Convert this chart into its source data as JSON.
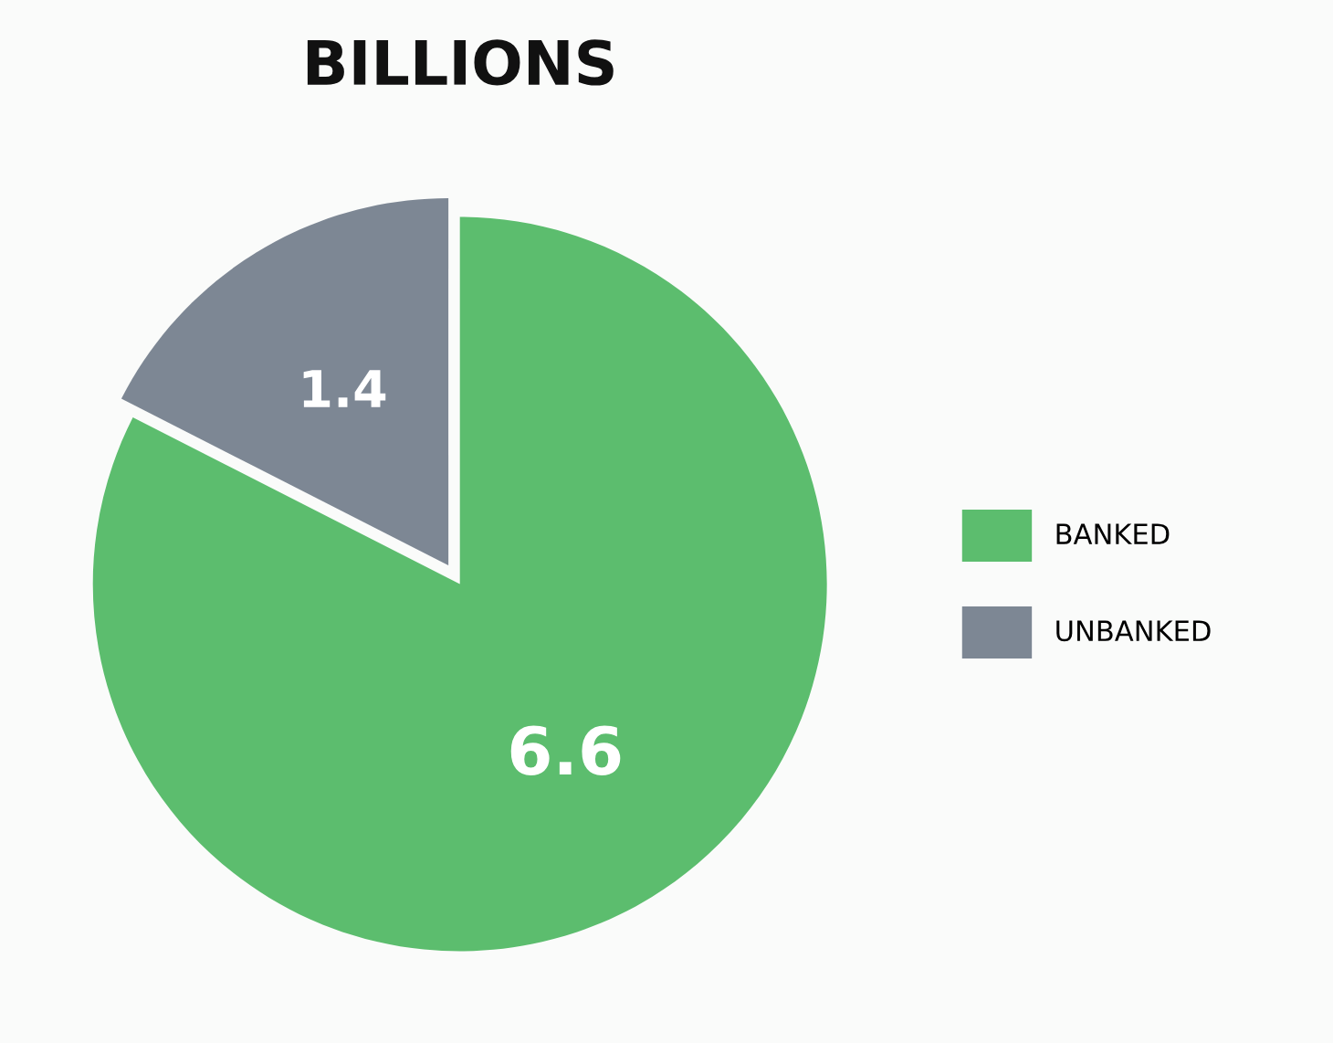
{
  "chart_data": {
    "type": "pie",
    "title": "BILLIONS",
    "categories": [
      "BANKED",
      "UNBANKED"
    ],
    "values": [
      6.6,
      1.4
    ],
    "colors": [
      "#5cbd6e",
      "#7d8794"
    ],
    "data_labels": true,
    "legend": "right"
  }
}
